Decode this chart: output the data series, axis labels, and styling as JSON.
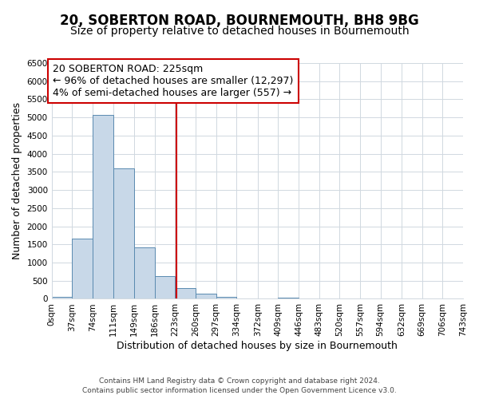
{
  "title": "20, SOBERTON ROAD, BOURNEMOUTH, BH8 9BG",
  "subtitle": "Size of property relative to detached houses in Bournemouth",
  "xlabel": "Distribution of detached houses by size in Bournemouth",
  "ylabel": "Number of detached properties",
  "footer_line1": "Contains HM Land Registry data © Crown copyright and database right 2024.",
  "footer_line2": "Contains public sector information licensed under the Open Government Licence v3.0.",
  "bar_edges": [
    0,
    37,
    74,
    111,
    149,
    186,
    223,
    260,
    297,
    334,
    372,
    409,
    446,
    483,
    520,
    557,
    594,
    632,
    669,
    706,
    743
  ],
  "bar_heights": [
    50,
    1650,
    5080,
    3600,
    1420,
    620,
    295,
    145,
    50,
    0,
    0,
    30,
    0,
    0,
    0,
    0,
    0,
    0,
    0,
    0
  ],
  "bar_color": "#c8d8e8",
  "bar_edge_color": "#5a8ab0",
  "vline_x": 225,
  "vline_color": "#cc0000",
  "annotation_line1": "20 SOBERTON ROAD: 225sqm",
  "annotation_line2": "← 96% of detached houses are smaller (12,297)",
  "annotation_line3": "4% of semi-detached houses are larger (557) →",
  "box_edge_color": "#cc0000",
  "ylim": [
    0,
    6500
  ],
  "yticks": [
    0,
    500,
    1000,
    1500,
    2000,
    2500,
    3000,
    3500,
    4000,
    4500,
    5000,
    5500,
    6000,
    6500
  ],
  "tick_labels": [
    "0sqm",
    "37sqm",
    "74sqm",
    "111sqm",
    "149sqm",
    "186sqm",
    "223sqm",
    "260sqm",
    "297sqm",
    "334sqm",
    "372sqm",
    "409sqm",
    "446sqm",
    "483sqm",
    "520sqm",
    "557sqm",
    "594sqm",
    "632sqm",
    "669sqm",
    "706sqm",
    "743sqm"
  ],
  "grid_color": "#d0d8e0",
  "bg_color": "#ffffff",
  "title_fontsize": 12,
  "subtitle_fontsize": 10,
  "label_fontsize": 9,
  "tick_fontsize": 7.5,
  "annotation_fontsize": 9,
  "footer_fontsize": 6.5
}
